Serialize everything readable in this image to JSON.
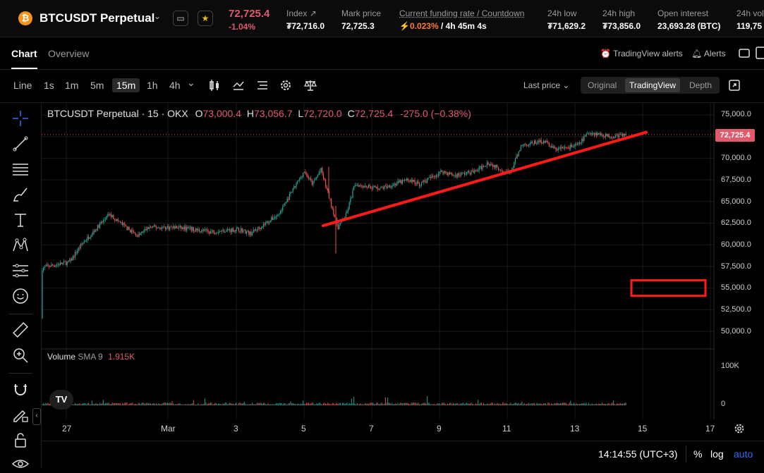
{
  "header": {
    "coin_symbol": "₿",
    "pair": "BTCUSDT Perpetual",
    "price": "72,725.4",
    "change": "-1.04%",
    "stats": [
      {
        "label": "Index",
        "value": "₮72,716.0"
      },
      {
        "label": "Mark price",
        "value": "72,725.3"
      },
      {
        "label": "Current funding rate / Countdown",
        "value_rate": "0.023%",
        "value_countdown": " / 4h 45m 4s"
      },
      {
        "label": "24h low",
        "value": "₮71,629.2"
      },
      {
        "label": "24h high",
        "value": "₮73,856.0"
      },
      {
        "label": "Open interest",
        "value": "23,693.28 (BTC)"
      },
      {
        "label": "24h vol",
        "value": "119,75"
      }
    ]
  },
  "tabs": {
    "chart": "Chart",
    "overview": "Overview",
    "tv_alerts": "TradingView alerts",
    "alerts": "Alerts"
  },
  "toolbar": {
    "line": "Line",
    "timeframes": [
      "1s",
      "1m",
      "5m",
      "15m",
      "1h",
      "4h"
    ],
    "selected_timeframe": "15m",
    "last_price": "Last price",
    "views": [
      "Original",
      "TradingView",
      "Depth"
    ],
    "selected_view": "TradingView"
  },
  "legend": {
    "title": "BTCUSDT Perpetual · 15 · OKX",
    "o_label": "O",
    "o_value": "73,000.4",
    "h_label": "H",
    "h_value": "73,056.7",
    "l_label": "L",
    "l_value": "72,720.0",
    "c_label": "C",
    "c_value": "72,725.4",
    "change": "-275.0 (−0.38%)"
  },
  "volume_legend": {
    "title": "Volume",
    "indicator": "SMA 9",
    "value": "1.915K"
  },
  "price_axis": [
    "75,000.0",
    "72,500.0",
    "70,000.0",
    "67,500.0",
    "65,000.0",
    "62,500.0",
    "60,000.0",
    "57,500.0",
    "55,000.0",
    "52,500.0",
    "50,000.0"
  ],
  "last_price_tag": "72,725.4",
  "volume_axis": [
    "100K",
    "0"
  ],
  "time_axis": [
    "27",
    "Mar",
    "3",
    "5",
    "7",
    "9",
    "11",
    "13",
    "15",
    "17"
  ],
  "bottom": {
    "time": "14:14:55 (UTC+3)",
    "percent": "%",
    "log": "log",
    "auto": "auto"
  },
  "tv_logo": "TV",
  "colors": {
    "up": "#26a69a",
    "down": "#ef5350",
    "accent_red": "#e05a6f",
    "trendline": "#ff1a1a",
    "blue": "#2f6df6"
  },
  "chart_data": {
    "type": "candlestick",
    "instrument": "BTCUSDT Perpetual",
    "exchange": "OKX",
    "interval": "15",
    "ylim": [
      50000,
      75000
    ],
    "x_ticks": [
      "27",
      "Mar",
      "3",
      "5",
      "7",
      "9",
      "11",
      "13",
      "15",
      "17"
    ],
    "price_path": [
      {
        "x": "Feb 25",
        "y": 51500
      },
      {
        "x": "Feb 25",
        "y": 50800
      },
      {
        "x": "Feb 25",
        "y": 54000
      },
      {
        "x": "Feb 26",
        "y": 57000
      },
      {
        "x": "Feb 26",
        "y": 57500
      },
      {
        "x": "Feb 27",
        "y": 58000
      },
      {
        "x": "Feb 27",
        "y": 60000
      },
      {
        "x": "Feb 28",
        "y": 63500
      },
      {
        "x": "Feb 29",
        "y": 61000
      },
      {
        "x": "Feb 29",
        "y": 62000
      },
      {
        "x": "Mar 1",
        "y": 62000
      },
      {
        "x": "Mar 2",
        "y": 61500
      },
      {
        "x": "Mar 3",
        "y": 61800
      },
      {
        "x": "Mar 3",
        "y": 61300
      },
      {
        "x": "Mar 4",
        "y": 63500
      },
      {
        "x": "Mar 5",
        "y": 68500
      },
      {
        "x": "Mar 5",
        "y": 67000
      },
      {
        "x": "Mar 5",
        "y": 68700
      },
      {
        "x": "Mar 6",
        "y": 62000
      },
      {
        "x": "Mar 6",
        "y": 63500
      },
      {
        "x": "Mar 6",
        "y": 67000
      },
      {
        "x": "Mar 7",
        "y": 66500
      },
      {
        "x": "Mar 8",
        "y": 67500
      },
      {
        "x": "Mar 8",
        "y": 67000
      },
      {
        "x": "Mar 9",
        "y": 68500
      },
      {
        "x": "Mar 9",
        "y": 68000
      },
      {
        "x": "Mar 10",
        "y": 68500
      },
      {
        "x": "Mar 10",
        "y": 69500
      },
      {
        "x": "Mar 11",
        "y": 68200
      },
      {
        "x": "Mar 11",
        "y": 71500
      },
      {
        "x": "Mar 12",
        "y": 72000
      },
      {
        "x": "Mar 12",
        "y": 71000
      },
      {
        "x": "Mar 13",
        "y": 71500
      },
      {
        "x": "Mar 13",
        "y": 73000
      },
      {
        "x": "Mar 14",
        "y": 72500
      },
      {
        "x": "Mar 14",
        "y": 72725.4
      }
    ],
    "trendline": {
      "from": {
        "x": "Mar 6",
        "y": 62200
      },
      "to": {
        "x": "Mar 14",
        "y": 73000
      }
    },
    "marked_level": {
      "y": 55000
    },
    "volume": {
      "ylim": [
        0,
        100000
      ]
    }
  }
}
